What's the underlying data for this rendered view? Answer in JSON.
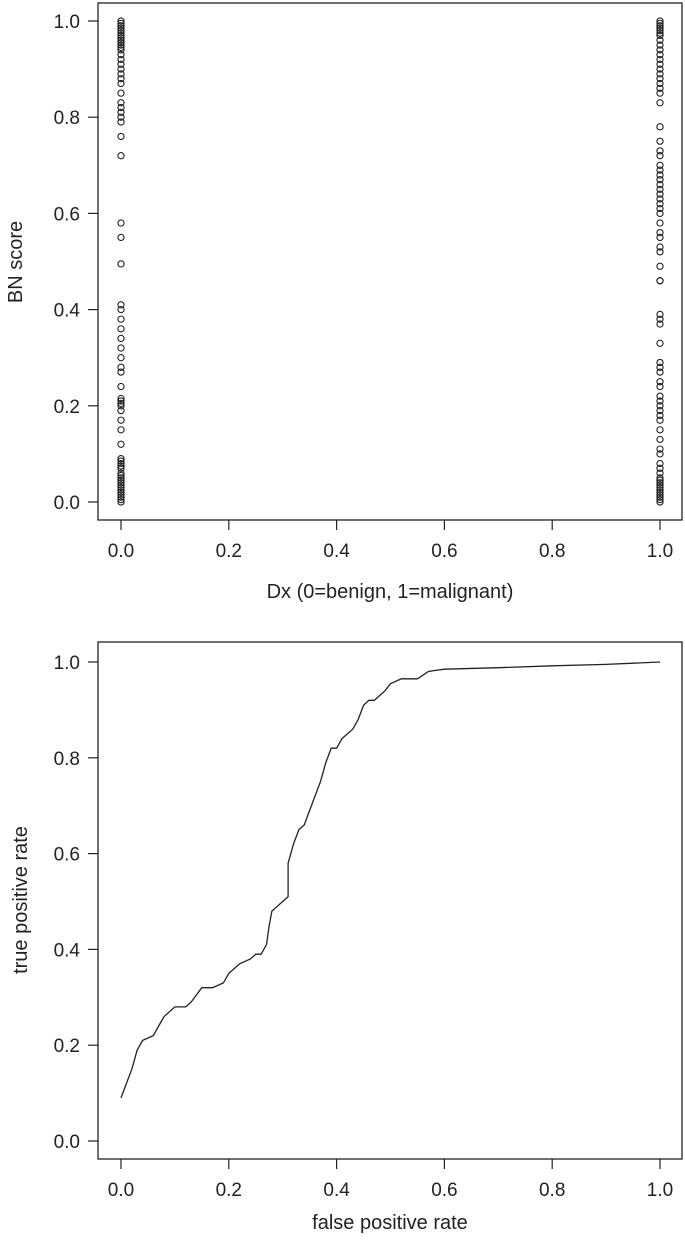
{
  "chart_data": [
    {
      "type": "scatter",
      "title": "",
      "xlabel": "Dx (0=benign, 1=malignant)",
      "ylabel": "BN score",
      "xlim": [
        0,
        1
      ],
      "ylim": [
        0,
        1
      ],
      "xticks": [
        "0.0",
        "0.2",
        "0.4",
        "0.6",
        "0.8",
        "1.0"
      ],
      "yticks": [
        "0.0",
        "0.2",
        "0.4",
        "0.6",
        "0.8",
        "1.0"
      ],
      "marker": "open-circle",
      "grid": false,
      "series": [
        {
          "x": 0,
          "y": [
            0.0,
            0.005,
            0.01,
            0.015,
            0.02,
            0.025,
            0.03,
            0.035,
            0.04,
            0.045,
            0.05,
            0.055,
            0.06,
            0.07,
            0.075,
            0.08,
            0.085,
            0.09,
            0.12,
            0.15,
            0.17,
            0.19,
            0.2,
            0.205,
            0.21,
            0.215,
            0.24,
            0.27,
            0.28,
            0.3,
            0.32,
            0.34,
            0.36,
            0.38,
            0.4,
            0.41,
            0.495,
            0.55,
            0.58,
            0.72,
            0.76,
            0.79,
            0.8,
            0.81,
            0.82,
            0.83,
            0.85,
            0.87,
            0.88,
            0.89,
            0.9,
            0.91,
            0.92,
            0.93,
            0.94,
            0.945,
            0.95,
            0.955,
            0.96,
            0.965,
            0.97,
            0.975,
            0.98,
            0.985,
            0.99,
            0.995,
            1.0
          ]
        },
        {
          "x": 1,
          "y": [
            0.0,
            0.005,
            0.01,
            0.015,
            0.02,
            0.025,
            0.03,
            0.035,
            0.04,
            0.045,
            0.05,
            0.06,
            0.07,
            0.08,
            0.1,
            0.11,
            0.13,
            0.15,
            0.17,
            0.18,
            0.19,
            0.2,
            0.21,
            0.22,
            0.24,
            0.25,
            0.27,
            0.28,
            0.29,
            0.33,
            0.37,
            0.38,
            0.39,
            0.46,
            0.46,
            0.49,
            0.52,
            0.53,
            0.55,
            0.56,
            0.58,
            0.6,
            0.61,
            0.62,
            0.63,
            0.64,
            0.65,
            0.66,
            0.67,
            0.68,
            0.69,
            0.7,
            0.72,
            0.73,
            0.75,
            0.78,
            0.83,
            0.85,
            0.86,
            0.87,
            0.88,
            0.89,
            0.9,
            0.91,
            0.92,
            0.93,
            0.94,
            0.95,
            0.96,
            0.97,
            0.975,
            0.98,
            0.985,
            0.99,
            0.995,
            1.0
          ]
        }
      ]
    },
    {
      "type": "line",
      "title": "",
      "xlabel": "false positive rate",
      "ylabel": "true positive rate",
      "xlim": [
        0,
        1
      ],
      "ylim": [
        0,
        1
      ],
      "xticks": [
        "0.0",
        "0.2",
        "0.4",
        "0.6",
        "0.8",
        "1.0"
      ],
      "yticks": [
        "0.0",
        "0.2",
        "0.4",
        "0.6",
        "0.8",
        "1.0"
      ],
      "grid": false,
      "series": [
        {
          "x": [
            0.0,
            0.01,
            0.02,
            0.03,
            0.04,
            0.06,
            0.07,
            0.08,
            0.09,
            0.1,
            0.12,
            0.13,
            0.15,
            0.17,
            0.19,
            0.2,
            0.21,
            0.22,
            0.24,
            0.25,
            0.26,
            0.27,
            0.275,
            0.28,
            0.29,
            0.3,
            0.31,
            0.31,
            0.32,
            0.33,
            0.34,
            0.35,
            0.36,
            0.37,
            0.38,
            0.39,
            0.4,
            0.41,
            0.42,
            0.43,
            0.44,
            0.45,
            0.46,
            0.47,
            0.48,
            0.49,
            0.5,
            0.52,
            0.55,
            0.57,
            0.58,
            0.6,
            0.7,
            0.8,
            0.9,
            1.0
          ],
          "y": [
            0.09,
            0.12,
            0.15,
            0.19,
            0.21,
            0.22,
            0.24,
            0.26,
            0.27,
            0.28,
            0.28,
            0.29,
            0.32,
            0.32,
            0.33,
            0.35,
            0.36,
            0.37,
            0.38,
            0.39,
            0.39,
            0.41,
            0.45,
            0.48,
            0.49,
            0.5,
            0.51,
            0.58,
            0.62,
            0.65,
            0.66,
            0.69,
            0.72,
            0.75,
            0.79,
            0.82,
            0.82,
            0.84,
            0.85,
            0.86,
            0.88,
            0.91,
            0.92,
            0.92,
            0.93,
            0.94,
            0.955,
            0.965,
            0.965,
            0.98,
            0.982,
            0.985,
            0.988,
            0.992,
            0.995,
            1.0
          ]
        }
      ]
    }
  ]
}
